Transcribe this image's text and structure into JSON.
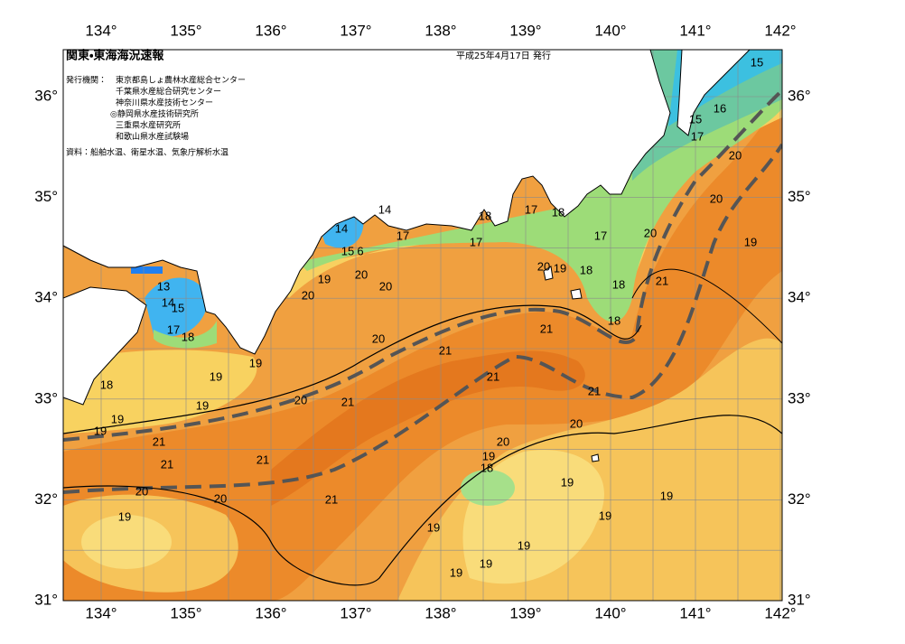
{
  "header": {
    "title": "関東・東海海況速報",
    "date": "平成25年4月17日 発行",
    "issuer_label": "発行機関：",
    "issuers": [
      "東京都島しょ農林水産総合センター",
      "千葉県水産総合研究センター",
      "神奈川県水産技術センター",
      "◎静岡県水産技術研究所",
      "三重県水産研究所",
      "和歌山県水産試験場"
    ],
    "source": "資料：船舶水温、衛星水温、気象庁解析水温"
  },
  "map": {
    "lon_labels": [
      "134°",
      "135°",
      "136°",
      "137°",
      "138°",
      "139°",
      "140°",
      "141°",
      "142°"
    ],
    "lat_labels": [
      "31°",
      "32°",
      "33°",
      "34°",
      "35°",
      "36°"
    ],
    "contour_labels": [
      15,
      15,
      16,
      17,
      20,
      20,
      19,
      20,
      21,
      17,
      18,
      18,
      18,
      19,
      20,
      18,
      17,
      18,
      17,
      17,
      14,
      14,
      15,
      6,
      20,
      20,
      19,
      20,
      13,
      14,
      15,
      17,
      18,
      20,
      21,
      21,
      21,
      21,
      19,
      19,
      18,
      19,
      20,
      21,
      19,
      19,
      21,
      21,
      21,
      20,
      20,
      19,
      18,
      20,
      20,
      19,
      19,
      21,
      19,
      19,
      19,
      19,
      19,
      19
    ]
  }
}
